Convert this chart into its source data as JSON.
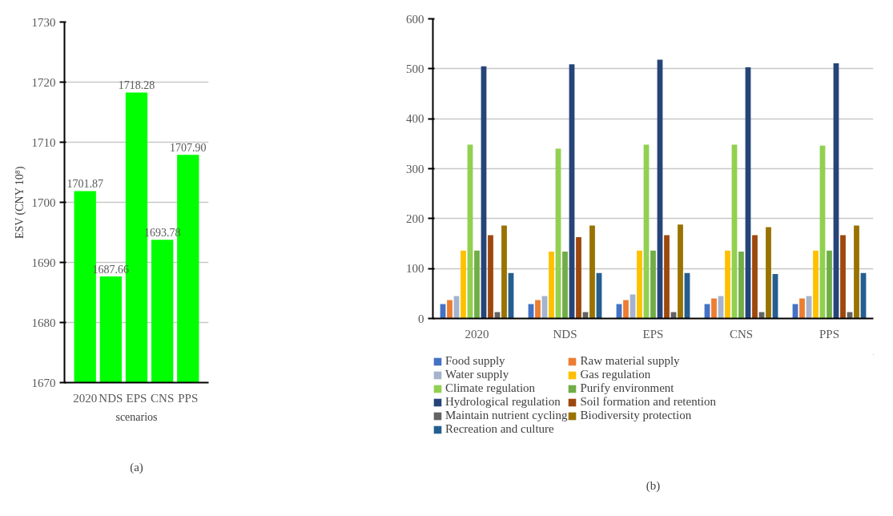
{
  "chart_data": [
    {
      "type": "bar",
      "xlabel": "scenarios",
      "ylabel": "ESV (CNY 10⁸)",
      "categories": [
        "2020",
        "NDS",
        "EPS",
        "CNS",
        "PPS"
      ],
      "values": [
        1701.87,
        1687.66,
        1718.28,
        1693.78,
        1707.9
      ],
      "value_labels": [
        "1701.87",
        "1687.66",
        "1718.28",
        "1693.78",
        "1707.90"
      ],
      "color": "#00ff00",
      "ylim": [
        1670,
        1730
      ],
      "yticks": [
        1670,
        1680,
        1690,
        1700,
        1710,
        1720,
        1730
      ],
      "grid": "y",
      "annotations": [
        "(a)"
      ]
    },
    {
      "type": "bar",
      "categories": [
        "2020",
        "NDS",
        "EPS",
        "CNS",
        "PPS"
      ],
      "ylim": [
        0,
        600
      ],
      "yticks": [
        0,
        100,
        200,
        300,
        400,
        500,
        600
      ],
      "grid": "y",
      "legend": "bottom",
      "annotations": [
        "(b)"
      ],
      "series": [
        {
          "name": "Food supply",
          "color": "#4472c4",
          "values": [
            29,
            29,
            29,
            29,
            29
          ]
        },
        {
          "name": "Raw material supply",
          "color": "#ed7d31",
          "values": [
            37,
            37,
            37,
            40,
            40
          ]
        },
        {
          "name": "Water supply",
          "color": "#a5b4cc",
          "values": [
            45,
            45,
            48,
            45,
            45
          ]
        },
        {
          "name": "Gas regulation",
          "color": "#ffc000",
          "values": [
            136,
            134,
            136,
            136,
            136
          ]
        },
        {
          "name": "Climate regulation",
          "color": "#92d050",
          "values": [
            348,
            340,
            348,
            348,
            346
          ]
        },
        {
          "name": "Purify environment",
          "color": "#70ad47",
          "values": [
            136,
            134,
            136,
            134,
            136
          ]
        },
        {
          "name": "Hydrological regulation",
          "color": "#264478",
          "values": [
            505,
            509,
            518,
            503,
            511
          ]
        },
        {
          "name": "Soil formation and retention",
          "color": "#9e480e",
          "values": [
            167,
            163,
            167,
            167,
            167
          ]
        },
        {
          "name": "Maintain nutrient cycling",
          "color": "#636363",
          "values": [
            13,
            13,
            13,
            13,
            13
          ]
        },
        {
          "name": "Biodiversity protection",
          "color": "#997300",
          "values": [
            186,
            186,
            188,
            183,
            186
          ]
        },
        {
          "name": "Recreation and culture",
          "color": "#255e91",
          "values": [
            91,
            91,
            91,
            89,
            91
          ]
        }
      ]
    }
  ]
}
